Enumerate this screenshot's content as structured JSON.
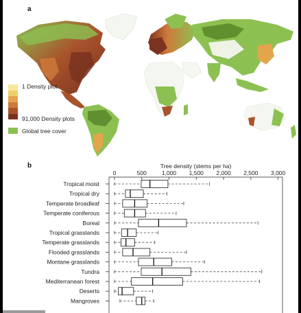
{
  "panel_a": {
    "label": "a",
    "legend": {
      "low_label": "1 Density plot",
      "high_label": "91,000 Density plots",
      "cover_label": "Global tree cover",
      "ramp_colors": [
        "#f6e79a",
        "#f0cf6a",
        "#e3a54b",
        "#cf7a3a",
        "#a8532c",
        "#7a3320"
      ],
      "cover_color": "#8cc152"
    }
  },
  "panel_b": {
    "label": "b",
    "chart_data": {
      "type": "boxplot",
      "orientation": "horizontal",
      "xlabel": "Tree density (stems per ha)",
      "xlim": [
        -100,
        3080
      ],
      "xticks": [
        0,
        500,
        1000,
        1500,
        2000,
        2500,
        3000
      ],
      "xtick_labels": [
        "0",
        "500",
        "1,000",
        "1,500",
        "2,000",
        "2,500",
        "3,000"
      ],
      "categories": [
        "Tropical moist",
        "Tropical dry",
        "Temperate broadleaf",
        "Temperate coniferous",
        "Boreal",
        "Tropical grasslands",
        "Temperate grasslands",
        "Flooded grasslands",
        "Montane grasslands",
        "Tundra",
        "Mediterranean forest",
        "Deserts",
        "Mangroves"
      ],
      "boxes": [
        {
          "whisker_low": 0,
          "q1": 490,
          "median": 650,
          "q3": 980,
          "whisker_high": 1740
        },
        {
          "whisker_low": 0,
          "q1": 200,
          "median": 290,
          "q3": 530,
          "whisker_high": 960
        },
        {
          "whisker_low": 0,
          "q1": 150,
          "median": 370,
          "q3": 600,
          "whisker_high": 1270
        },
        {
          "whisker_low": 0,
          "q1": 180,
          "median": 370,
          "q3": 570,
          "whisker_high": 1130
        },
        {
          "whisker_low": 0,
          "q1": 440,
          "median": 810,
          "q3": 1320,
          "whisker_high": 2630
        },
        {
          "whisker_low": 0,
          "q1": 130,
          "median": 240,
          "q3": 400,
          "whisker_high": 800
        },
        {
          "whisker_low": 0,
          "q1": 120,
          "median": 210,
          "q3": 370,
          "whisker_high": 740
        },
        {
          "whisker_low": 0,
          "q1": 150,
          "median": 340,
          "q3": 650,
          "whisker_high": 1320
        },
        {
          "whisker_low": 0,
          "q1": 440,
          "median": 720,
          "q3": 1050,
          "whisker_high": 1650
        },
        {
          "whisker_low": 0,
          "q1": 490,
          "median": 870,
          "q3": 1400,
          "whisker_high": 2700
        },
        {
          "whisker_low": 0,
          "q1": 310,
          "median": 700,
          "q3": 1250,
          "whisker_high": 2660
        },
        {
          "whisker_low": 0,
          "q1": 70,
          "median": 140,
          "q3": 350,
          "whisker_high": 700
        },
        {
          "whisker_low": 100,
          "q1": 400,
          "median": 500,
          "q3": 560,
          "whisker_high": 720
        }
      ],
      "grid": false,
      "legend": "none"
    }
  }
}
